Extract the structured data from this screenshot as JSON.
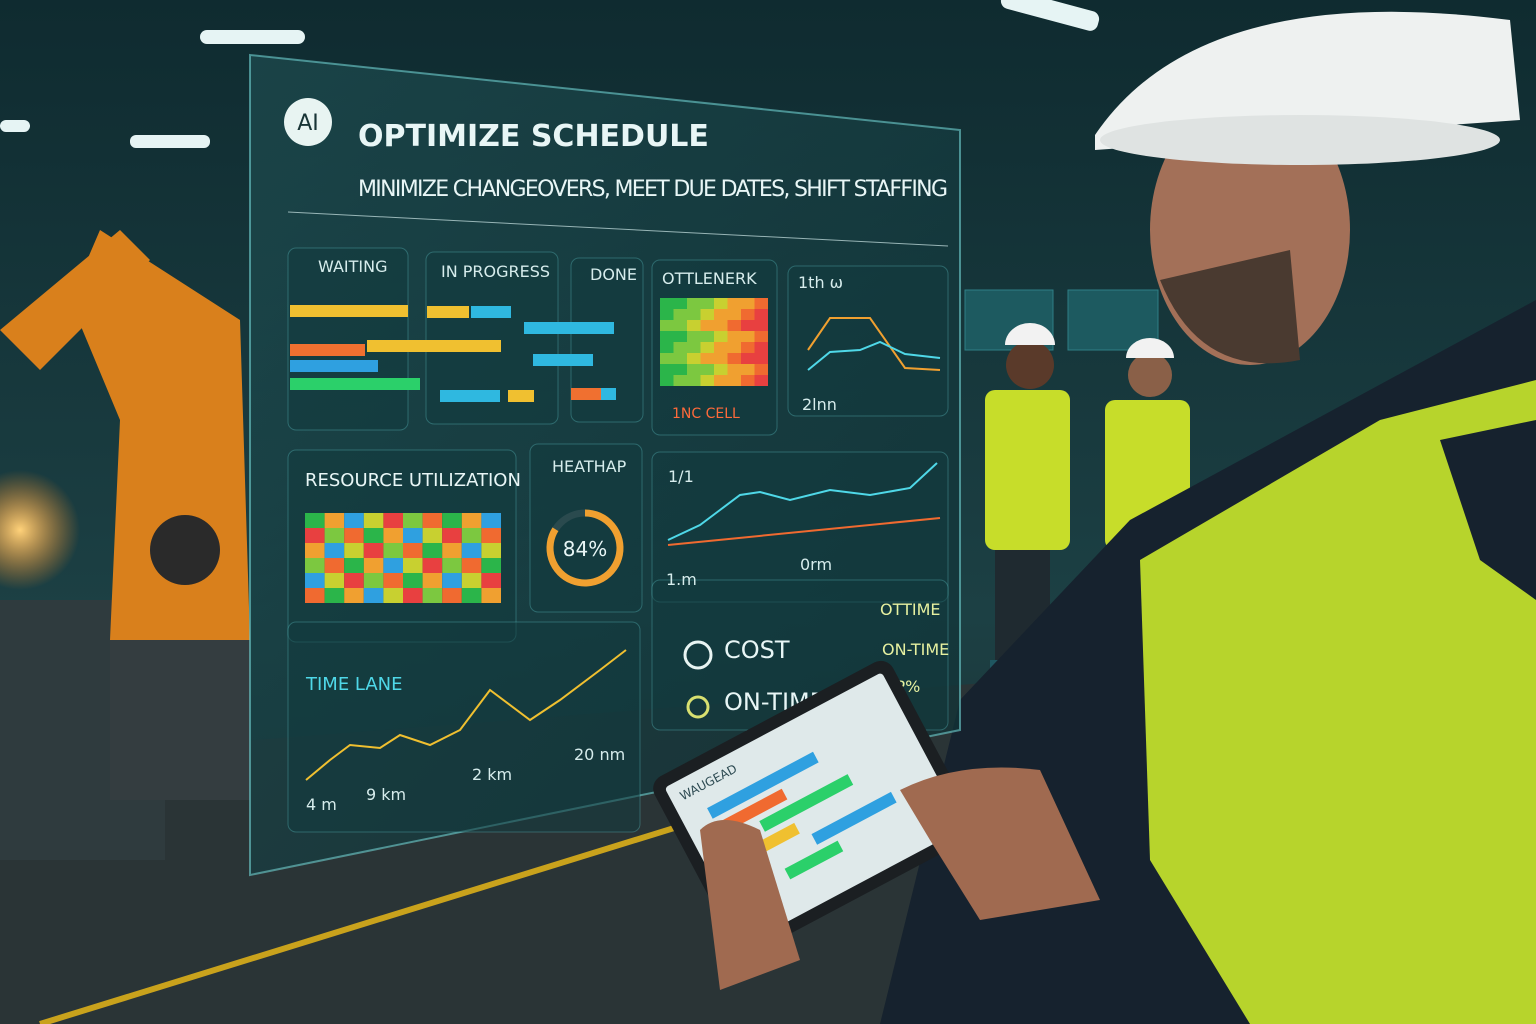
{
  "panel": {
    "badge": "AI",
    "title": "OPTIMIZE SCHEDULE",
    "subtitle": "MINIMIZE CHANGEOVERS, MEET DUE DATES, SHIFT STAFFING"
  },
  "kanban": {
    "columns": [
      "WAITING",
      "IN PROGRESS",
      "DONE"
    ]
  },
  "bottleneck": {
    "title": "OTTLENERK",
    "alert": "1NC CELL"
  },
  "trend_top": {
    "label": "1th ω",
    "axis": "2lnn"
  },
  "utilization": {
    "title": "RESOURCE UTILIZATION"
  },
  "gauge": {
    "title": "HEATHAP",
    "value": 84,
    "label": "84%"
  },
  "trend_mid": {
    "label": "1/1",
    "axis_labels": [
      "1.m",
      "0rm"
    ]
  },
  "time_lane": {
    "title": "TIME LANE",
    "axis_labels": [
      "4 m",
      "9 km",
      "2 km",
      "20 nm"
    ]
  },
  "kpis": {
    "left": [
      "COST",
      "ON-TIME"
    ],
    "right": [
      "OTTIME",
      "ON-TIME",
      "KP%"
    ]
  },
  "tablet": {
    "title": "WAUGEAD"
  }
}
